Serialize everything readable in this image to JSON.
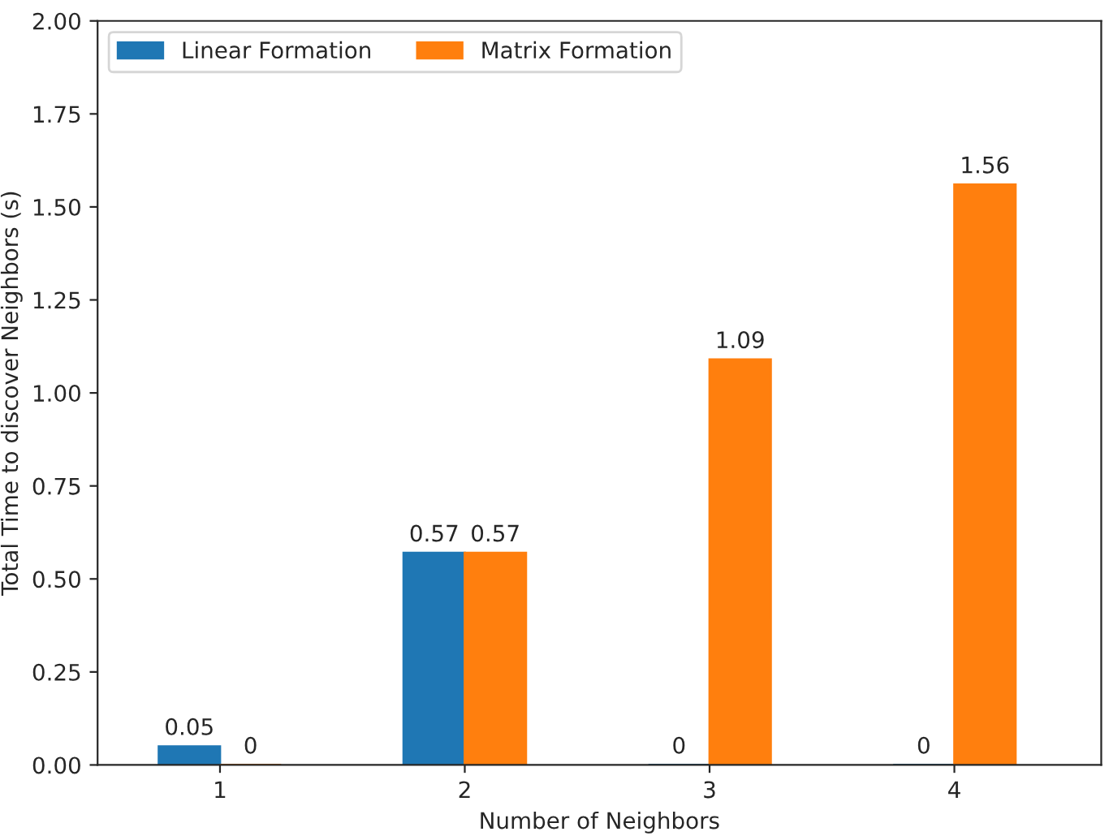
{
  "chart_data": {
    "type": "bar",
    "xlabel": "Number of Neighbors",
    "ylabel": "Total Time to discover Neighbors (s)",
    "categories": [
      "1",
      "2",
      "3",
      "4"
    ],
    "series": [
      {
        "name": "Linear Formation",
        "color": "#1f77b4",
        "values": [
          0.05,
          0.57,
          0,
          0
        ]
      },
      {
        "name": "Matrix Formation",
        "color": "#ff7f0e",
        "values": [
          0,
          0.57,
          1.09,
          1.56
        ]
      }
    ],
    "ylim": [
      0,
      2
    ],
    "yticks": [
      {
        "value": 0,
        "label": "0.00"
      },
      {
        "value": 0.25,
        "label": "0.25"
      },
      {
        "value": 0.5,
        "label": "0.50"
      },
      {
        "value": 0.75,
        "label": "0.75"
      },
      {
        "value": 1,
        "label": "1.00"
      },
      {
        "value": 1.25,
        "label": "1.25"
      },
      {
        "value": 1.5,
        "label": "1.50"
      },
      {
        "value": 1.75,
        "label": "1.75"
      },
      {
        "value": 2,
        "label": "2.00"
      }
    ],
    "data_labels": true,
    "legend": "top left"
  }
}
